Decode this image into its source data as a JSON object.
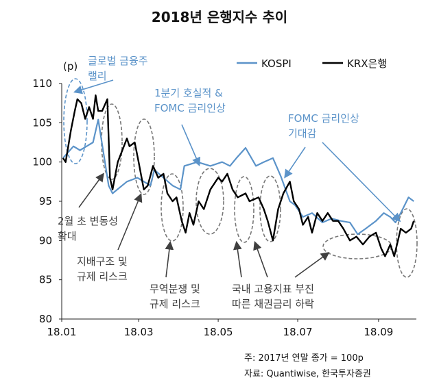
{
  "chart_data": {
    "type": "line",
    "title": "2018년 은행지수 추이",
    "ylabel": "(p)",
    "ylim": [
      80,
      110
    ],
    "yticks": [
      "80",
      "85",
      "90",
      "95",
      "100",
      "105",
      "110"
    ],
    "xlim": [
      "2018-01-01",
      "2018-09-30"
    ],
    "xticks": [
      {
        "label": "18.01",
        "date": "2018-01-01"
      },
      {
        "label": "18.03",
        "date": "2018-03-01"
      },
      {
        "label": "18.05",
        "date": "2018-05-01"
      },
      {
        "label": "18.07",
        "date": "2018-07-01"
      },
      {
        "label": "18.09",
        "date": "2018-09-01"
      }
    ],
    "legend_position": "top-right",
    "grid": false,
    "series": [
      {
        "name": "KOSPI",
        "color": "#5b93c9",
        "points": [
          [
            "2018-01-02",
            100.5
          ],
          [
            "2018-01-10",
            102
          ],
          [
            "2018-01-15",
            101.5
          ],
          [
            "2018-01-25",
            102.5
          ],
          [
            "2018-01-29",
            105.4
          ],
          [
            "2018-02-06",
            97
          ],
          [
            "2018-02-09",
            96
          ],
          [
            "2018-02-20",
            97.5
          ],
          [
            "2018-02-28",
            98
          ],
          [
            "2018-03-10",
            97
          ],
          [
            "2018-03-13",
            99
          ],
          [
            "2018-03-20",
            98
          ],
          [
            "2018-03-27",
            97
          ],
          [
            "2018-04-02",
            96.5
          ],
          [
            "2018-04-05",
            99.5
          ],
          [
            "2018-04-15",
            100
          ],
          [
            "2018-04-25",
            99.5
          ],
          [
            "2018-05-04",
            100
          ],
          [
            "2018-05-10",
            99.5
          ],
          [
            "2018-05-15",
            100.5
          ],
          [
            "2018-05-22",
            101.8
          ],
          [
            "2018-05-30",
            99.5
          ],
          [
            "2018-06-05",
            100
          ],
          [
            "2018-06-12",
            100.5
          ],
          [
            "2018-06-18",
            98.2
          ],
          [
            "2018-06-25",
            95
          ],
          [
            "2018-06-29",
            94.5
          ],
          [
            "2018-07-05",
            93
          ],
          [
            "2018-07-12",
            93.5
          ],
          [
            "2018-07-20",
            92.3
          ],
          [
            "2018-07-27",
            92.8
          ],
          [
            "2018-08-03",
            92.5
          ],
          [
            "2018-08-10",
            92.3
          ],
          [
            "2018-08-16",
            90.8
          ],
          [
            "2018-08-22",
            91.5
          ],
          [
            "2018-08-30",
            92.5
          ],
          [
            "2018-09-05",
            93.5
          ],
          [
            "2018-09-10",
            93
          ],
          [
            "2018-09-14",
            92.3
          ],
          [
            "2018-09-18",
            93.5
          ],
          [
            "2018-09-24",
            95.5
          ],
          [
            "2018-09-28",
            95
          ]
        ]
      },
      {
        "name": "KRX은행",
        "color": "#000000",
        "points": [
          [
            "2018-01-02",
            100.5
          ],
          [
            "2018-01-04",
            100
          ],
          [
            "2018-01-08",
            104
          ],
          [
            "2018-01-11",
            106.5
          ],
          [
            "2018-01-13",
            108
          ],
          [
            "2018-01-16",
            107.5
          ],
          [
            "2018-01-19",
            105.5
          ],
          [
            "2018-01-22",
            107
          ],
          [
            "2018-01-25",
            105.5
          ],
          [
            "2018-01-27",
            108.5
          ],
          [
            "2018-01-29",
            106.5
          ],
          [
            "2018-02-01",
            106.5
          ],
          [
            "2018-02-05",
            108
          ],
          [
            "2018-02-07",
            98
          ],
          [
            "2018-02-09",
            96.5
          ],
          [
            "2018-02-13",
            100
          ],
          [
            "2018-02-20",
            103
          ],
          [
            "2018-02-22",
            102
          ],
          [
            "2018-02-26",
            102.5
          ],
          [
            "2018-03-01",
            100
          ],
          [
            "2018-03-05",
            96.5
          ],
          [
            "2018-03-08",
            97
          ],
          [
            "2018-03-12",
            99.5
          ],
          [
            "2018-03-16",
            98
          ],
          [
            "2018-03-20",
            98.5
          ],
          [
            "2018-03-23",
            96
          ],
          [
            "2018-03-27",
            95
          ],
          [
            "2018-03-30",
            95.5
          ],
          [
            "2018-04-03",
            92.5
          ],
          [
            "2018-04-06",
            91
          ],
          [
            "2018-04-09",
            93.5
          ],
          [
            "2018-04-12",
            92
          ],
          [
            "2018-04-16",
            95
          ],
          [
            "2018-04-20",
            94
          ],
          [
            "2018-04-25",
            96.5
          ],
          [
            "2018-05-01",
            98
          ],
          [
            "2018-05-04",
            97.5
          ],
          [
            "2018-05-08",
            98.5
          ],
          [
            "2018-05-12",
            96.5
          ],
          [
            "2018-05-16",
            95.5
          ],
          [
            "2018-05-22",
            96
          ],
          [
            "2018-05-25",
            95
          ],
          [
            "2018-06-01",
            95.5
          ],
          [
            "2018-06-05",
            94
          ],
          [
            "2018-06-08",
            92.5
          ],
          [
            "2018-06-12",
            90
          ],
          [
            "2018-06-16",
            94
          ],
          [
            "2018-06-20",
            96
          ],
          [
            "2018-06-25",
            97.5
          ],
          [
            "2018-06-28",
            95
          ],
          [
            "2018-07-02",
            94
          ],
          [
            "2018-07-05",
            92
          ],
          [
            "2018-07-09",
            93
          ],
          [
            "2018-07-12",
            91
          ],
          [
            "2018-07-16",
            93.5
          ],
          [
            "2018-07-20",
            92.5
          ],
          [
            "2018-07-24",
            93.5
          ],
          [
            "2018-07-28",
            92.5
          ],
          [
            "2018-08-01",
            92.5
          ],
          [
            "2018-08-05",
            91.5
          ],
          [
            "2018-08-10",
            90
          ],
          [
            "2018-08-15",
            90.5
          ],
          [
            "2018-08-20",
            89.5
          ],
          [
            "2018-08-25",
            90.5
          ],
          [
            "2018-08-30",
            91
          ],
          [
            "2018-09-03",
            89
          ],
          [
            "2018-09-06",
            88
          ],
          [
            "2018-09-10",
            89.5
          ],
          [
            "2018-09-13",
            88
          ],
          [
            "2018-09-18",
            91.5
          ],
          [
            "2018-09-22",
            91
          ],
          [
            "2018-09-26",
            91.5
          ],
          [
            "2018-09-28",
            92.5
          ]
        ]
      }
    ],
    "annotations": [
      {
        "id": "rally",
        "lines": [
          "글로벌 금융주",
          "랠리"
        ],
        "color": "#5b93c9"
      },
      {
        "id": "q1",
        "lines": [
          "1분기 호실적 &",
          "FOMC 금리인상"
        ],
        "color": "#5b93c9"
      },
      {
        "id": "fomc",
        "lines": [
          "FOMC 금리인상",
          "기대감"
        ],
        "color": "#5b93c9"
      },
      {
        "id": "feb",
        "lines": [
          "2월 초 변동성",
          "확대"
        ],
        "color": "#404040"
      },
      {
        "id": "gov",
        "lines": [
          "지배구조 및",
          "규제 리스크"
        ],
        "color": "#404040"
      },
      {
        "id": "trade",
        "lines": [
          "무역분쟁 및",
          "규제 리스크"
        ],
        "color": "#404040"
      },
      {
        "id": "jobs",
        "lines": [
          "국내 고용지표 부진",
          "따른 채권금리 하락"
        ],
        "color": "#404040"
      }
    ],
    "notes": [
      "주: 2017년 연말 종가 = 100p",
      "자료: Quantiwise, 한국투자증권"
    ]
  }
}
